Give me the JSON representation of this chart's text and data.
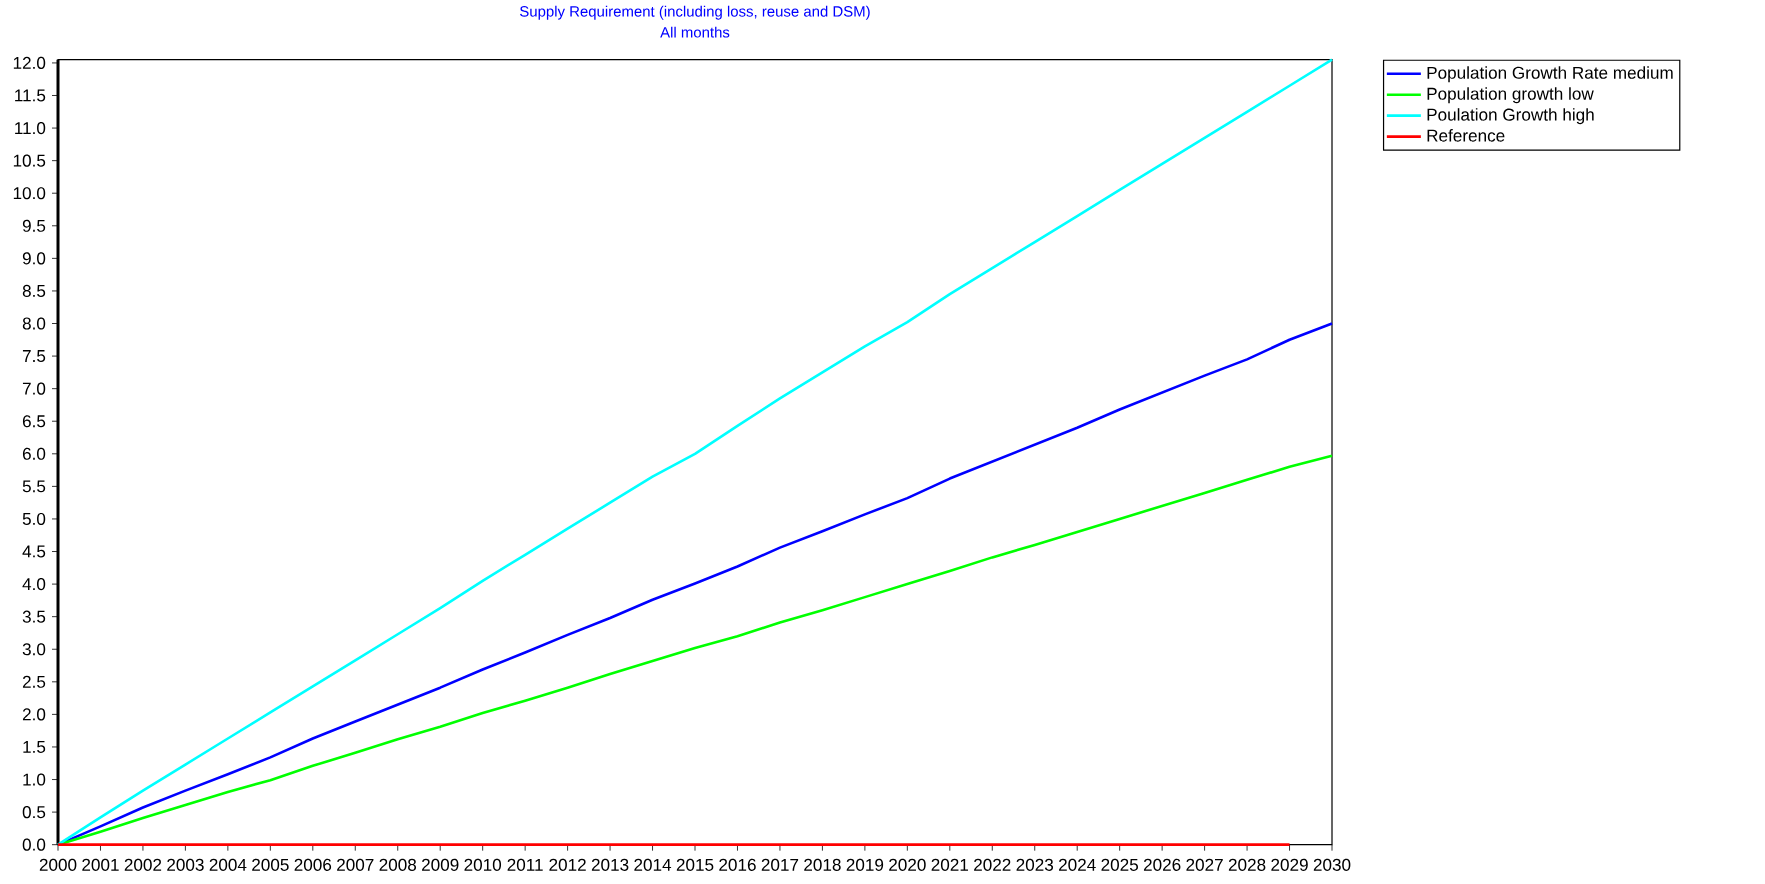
{
  "chart_data": {
    "type": "line",
    "title": "Supply Requirement (including loss, reuse and DSM)",
    "subtitle": "All months",
    "categories": [
      "2000",
      "2001",
      "2002",
      "2003",
      "2004",
      "2005",
      "2006",
      "2007",
      "2008",
      "2009",
      "2010",
      "2011",
      "2012",
      "2013",
      "2014",
      "2015",
      "2016",
      "2017",
      "2018",
      "2019",
      "2020",
      "2021",
      "2022",
      "2023",
      "2024",
      "2025",
      "2026",
      "2027",
      "2028",
      "2029",
      "2030"
    ],
    "series": [
      {
        "name": "Population Growth Rate  medium",
        "color": "#0000ff",
        "values": [
          0,
          0.28,
          0.57,
          0.83,
          1.08,
          1.34,
          1.63,
          1.89,
          2.15,
          2.41,
          2.69,
          2.95,
          3.22,
          3.48,
          3.76,
          4.01,
          4.27,
          4.56,
          4.81,
          5.07,
          5.32,
          5.62,
          5.88,
          6.14,
          6.4,
          6.68,
          6.94,
          7.2,
          7.45,
          7.75,
          8.0
        ]
      },
      {
        "name": "Population growth low",
        "color": "#00ff00",
        "values": [
          0,
          0.2,
          0.41,
          0.61,
          0.81,
          0.99,
          1.21,
          1.41,
          1.62,
          1.81,
          2.02,
          2.21,
          2.41,
          2.62,
          2.82,
          3.02,
          3.2,
          3.41,
          3.6,
          3.8,
          4.0,
          4.2,
          4.41,
          4.6,
          4.8,
          5.0,
          5.2,
          5.4,
          5.6,
          5.8,
          5.97
        ]
      },
      {
        "name": "Poulation Growth high",
        "color": "#00ffff",
        "values": [
          0,
          0.42,
          0.83,
          1.23,
          1.63,
          2.03,
          2.43,
          2.83,
          3.23,
          3.63,
          4.05,
          4.45,
          4.85,
          5.25,
          5.65,
          6.0,
          6.43,
          6.85,
          7.25,
          7.65,
          8.02,
          8.45,
          8.85,
          9.25,
          9.65,
          10.05,
          10.45,
          10.85,
          11.25,
          11.65,
          12.05
        ]
      },
      {
        "name": "Reference",
        "color": "#ff0000",
        "values": [
          0,
          0,
          0,
          0,
          0,
          0,
          0,
          0,
          0,
          0,
          0,
          0,
          0,
          0,
          0,
          0,
          0,
          0,
          0,
          0,
          0,
          0,
          0,
          0,
          0,
          0,
          0,
          0,
          0,
          0,
          null
        ]
      }
    ],
    "ylim": [
      0,
      12.05
    ],
    "yticks": [
      {
        "value": 0,
        "label": "0.0"
      },
      {
        "value": 0.5,
        "label": "0.5"
      },
      {
        "value": 1,
        "label": "1.0"
      },
      {
        "value": 1.5,
        "label": "1.5"
      },
      {
        "value": 2,
        "label": "2.0"
      },
      {
        "value": 2.5,
        "label": "2.5"
      },
      {
        "value": 3,
        "label": "3.0"
      },
      {
        "value": 3.5,
        "label": "3.5"
      },
      {
        "value": 4,
        "label": "4.0"
      },
      {
        "value": 4.5,
        "label": "4.5"
      },
      {
        "value": 5,
        "label": "5.0"
      },
      {
        "value": 5.5,
        "label": "5.5"
      },
      {
        "value": 6,
        "label": "6.0"
      },
      {
        "value": 6.5,
        "label": "6.5"
      },
      {
        "value": 7,
        "label": "7.0"
      },
      {
        "value": 7.5,
        "label": "7.5"
      },
      {
        "value": 8,
        "label": "8.0"
      },
      {
        "value": 8.5,
        "label": "8.5"
      },
      {
        "value": 9,
        "label": "9.0"
      },
      {
        "value": 9.5,
        "label": "9.5"
      },
      {
        "value": 10,
        "label": "10.0"
      },
      {
        "value": 10.5,
        "label": "10.5"
      },
      {
        "value": 11,
        "label": "11.0"
      },
      {
        "value": 11.5,
        "label": "11.5"
      },
      {
        "value": 12,
        "label": "12.0"
      }
    ],
    "grid": false,
    "legend": "top right",
    "marker": "none",
    "line_style": "solid"
  }
}
